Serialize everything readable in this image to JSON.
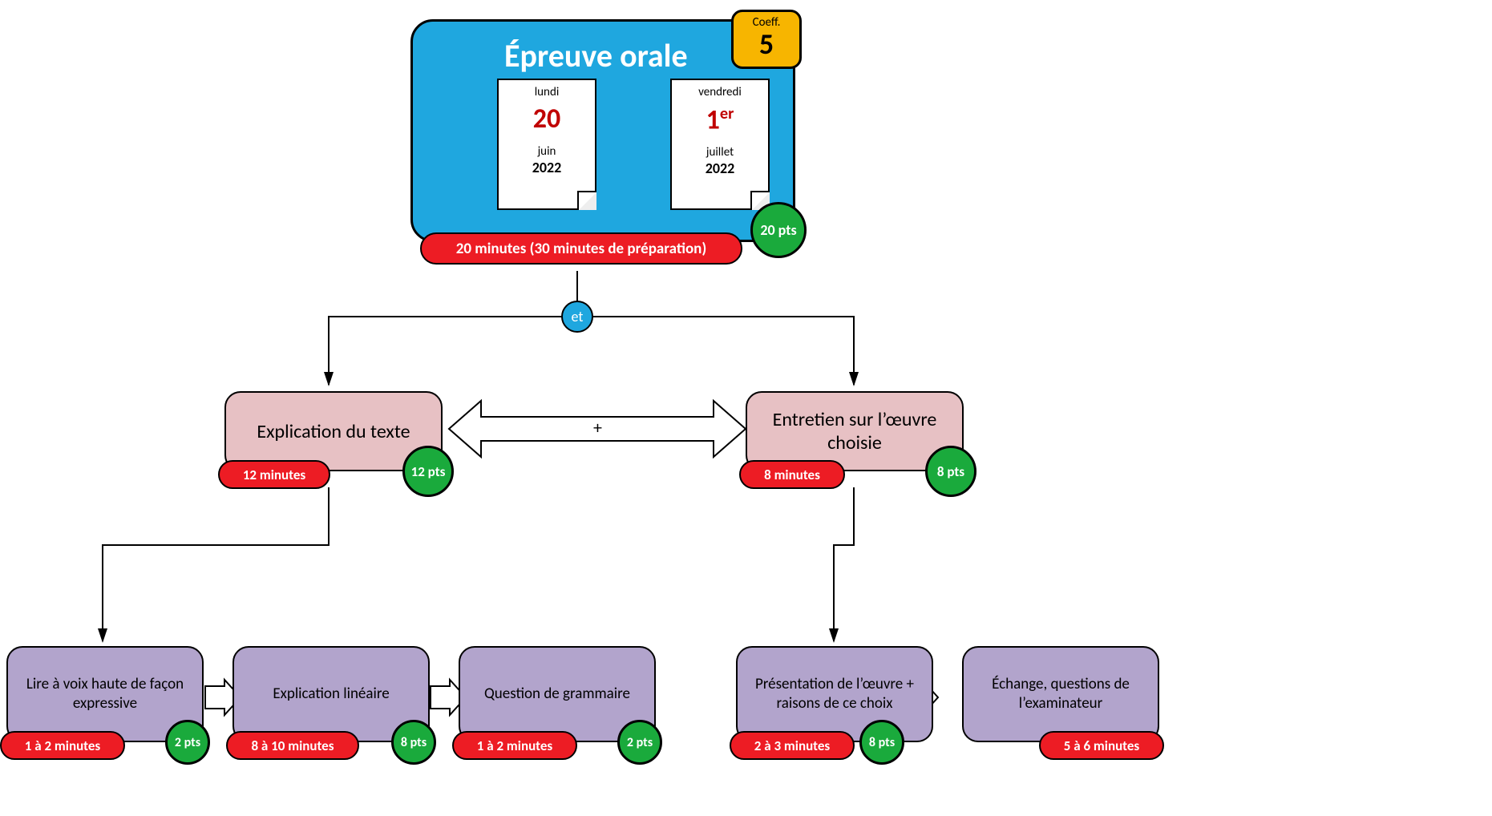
{
  "colors": {
    "main": "#1fa7df",
    "coeff": "#f7b500",
    "pill": "#ed1c24",
    "pts": "#1aaa3c",
    "pink": "#e7c1c4",
    "purple": "#b2a4cc",
    "date": "#c00000"
  },
  "main": {
    "title": "Épreuve orale",
    "coeff_label": "Coeff.",
    "coeff_val": "5",
    "date_from": {
      "dow": "lundi",
      "num": "20",
      "mon": "juin",
      "yr": "2022"
    },
    "date_to": {
      "dow": "vendredi",
      "num_html": "1<sup>er</sup>",
      "mon": "juillet",
      "yr": "2022"
    },
    "duration": "20 minutes (30 minutes de préparation)",
    "points": "20 pts"
  },
  "connector": "et",
  "plus": "+",
  "left": {
    "title": "Explication du texte",
    "duration": "12 minutes",
    "points": "12 pts",
    "children": [
      {
        "title": "Lire à voix haute de façon expressive",
        "duration": "1 à 2 minutes",
        "points": "2 pts"
      },
      {
        "title": "Explication linéaire",
        "duration": "8 à 10 minutes",
        "points": "8 pts"
      },
      {
        "title": "Question de grammaire",
        "duration": "1 à 2 minutes",
        "points": "2 pts"
      }
    ]
  },
  "right": {
    "title": "Entretien sur l’œuvre choisie",
    "duration": "8 minutes",
    "points": "8 pts",
    "children": [
      {
        "title": "Présentation de l’œuvre + raisons de ce choix",
        "duration": "2 à 3 minutes",
        "points": "8 pts"
      },
      {
        "title": "Échange, questions de l’examinateur",
        "duration": "5 à 6 minutes"
      }
    ]
  }
}
